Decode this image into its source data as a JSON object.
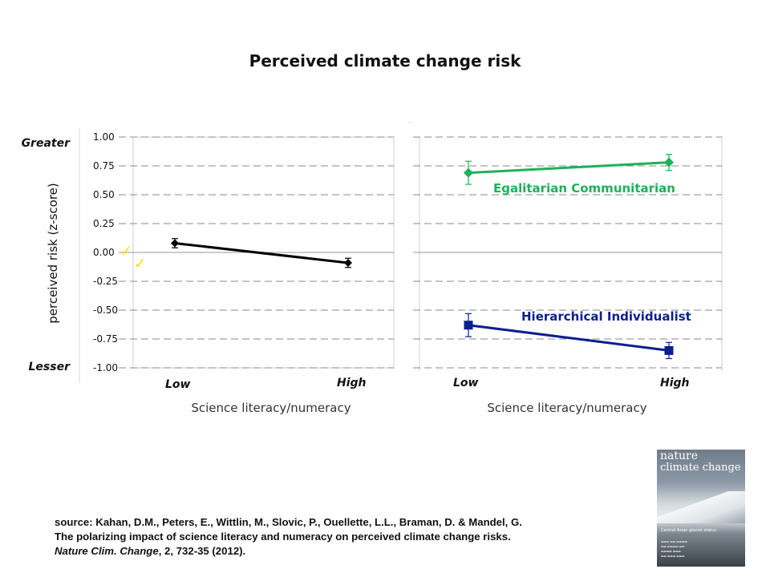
{
  "slide_title": "Perceived climate change risk",
  "chart_data": [
    {
      "type": "line",
      "ylabel": "perceived risk (z-score)",
      "xlabel": "Science literacy/numeracy",
      "ylim": [
        -1.0,
        1.0
      ],
      "yticks": [
        "1.00",
        "0.75",
        "0.50",
        "0.25",
        "0.00",
        "-0.25",
        "-0.50",
        "-0.75",
        "-1.00"
      ],
      "y_top_label": "Greater",
      "y_bottom_label": "Lesser",
      "categories": [
        "Low",
        "High"
      ],
      "grid": true,
      "series": [
        {
          "values": [
            0.08,
            -0.09
          ],
          "error": [
            0.04,
            0.04
          ],
          "color": "#000000",
          "marker": "diamond"
        }
      ]
    },
    {
      "type": "line",
      "xlabel": "Science literacy/numeracy",
      "ylim": [
        -1.0,
        1.0
      ],
      "categories": [
        "Low",
        "High"
      ],
      "grid": true,
      "series": [
        {
          "name": "Egalitarian Communitarian",
          "values": [
            0.69,
            0.78
          ],
          "error": [
            0.1,
            0.07
          ],
          "color": "#1db15a",
          "marker": "diamond"
        },
        {
          "name": "Hierarchical Individualist",
          "values": [
            -0.63,
            -0.85
          ],
          "error": [
            0.1,
            0.07
          ],
          "color": "#0a1f8f",
          "marker": "square"
        }
      ]
    }
  ],
  "checkmark_glyph": "✓",
  "checkmark_color": "#f2e200",
  "citation": {
    "line1": "source: Kahan, D.M., Peters, E., Wittlin, M., Slovic, P., Ouellette, L.L., Braman, D. & Mandel, G.",
    "line2": "The polarizing impact of science literacy and numeracy on perceived climate change risks.",
    "line3_journal": "Nature Clim. Change",
    "line3_rest": ",  2, 732-35 (2012)."
  },
  "journal_cover": {
    "name_line1": "nature",
    "name_line2": "climate change",
    "headline": "Central Asian glacier status"
  }
}
